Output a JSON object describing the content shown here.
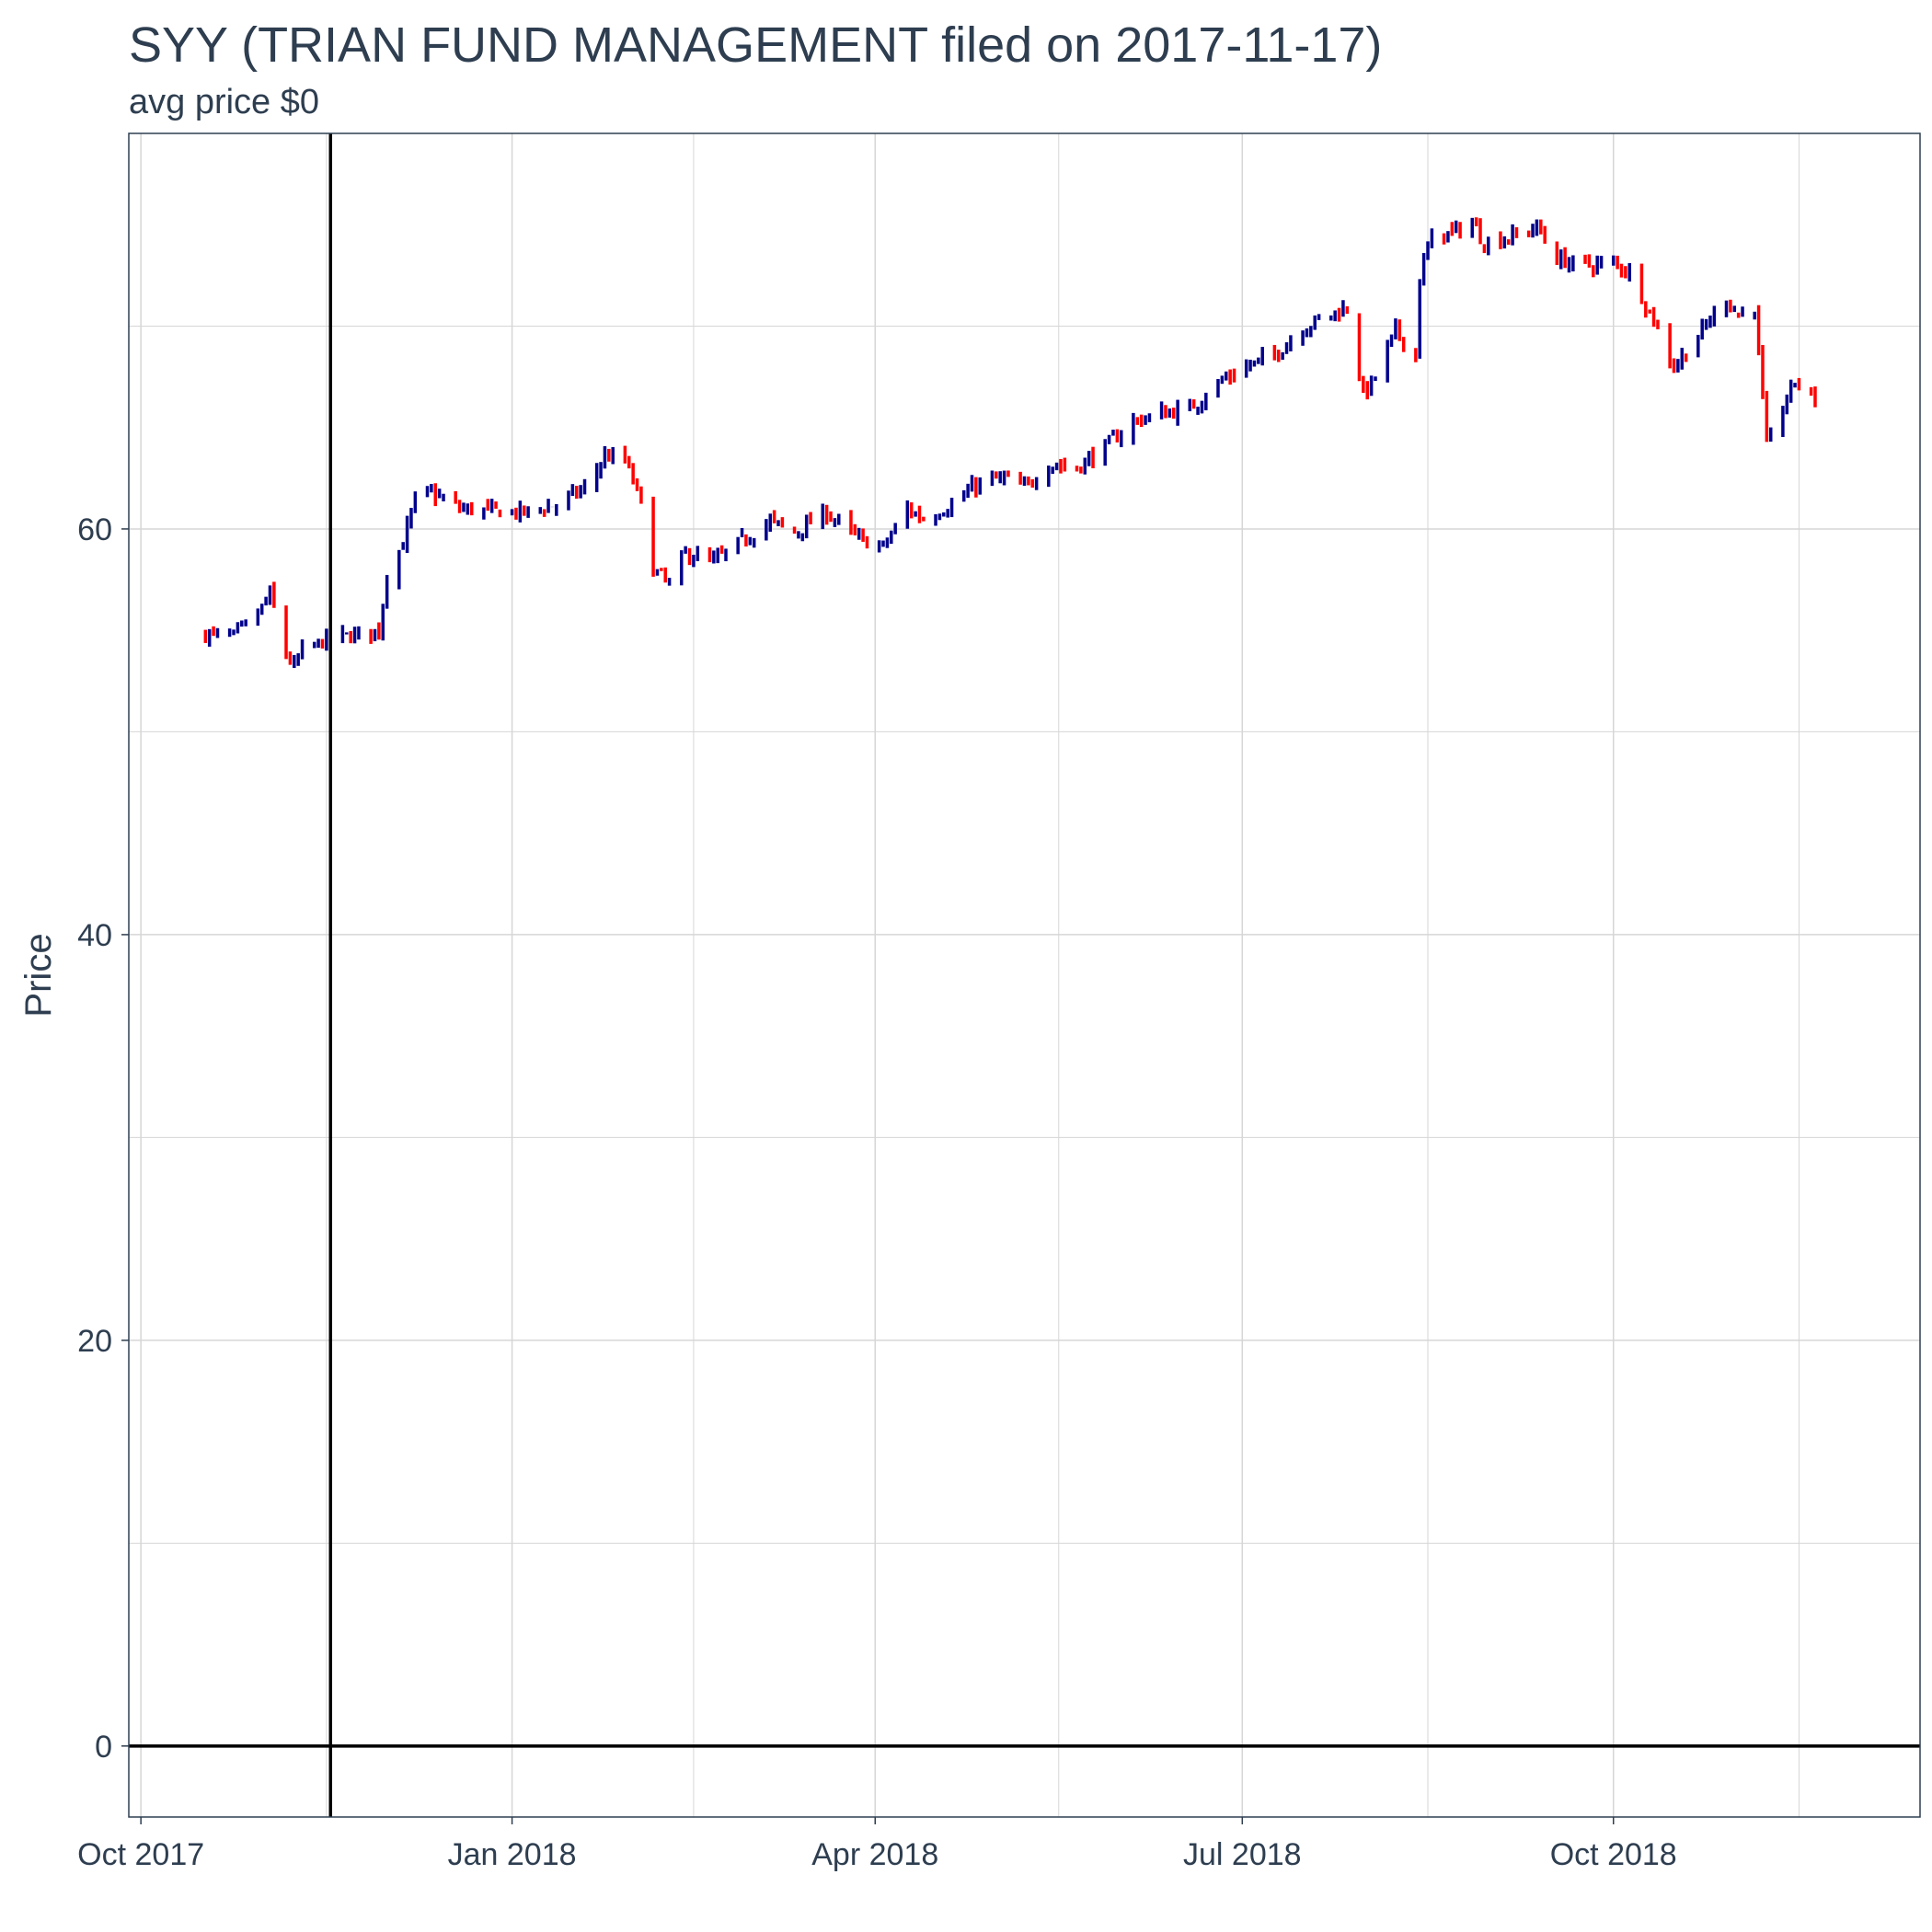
{
  "chart_data": {
    "type": "ohlc",
    "title": "SYY (TRIAN FUND MANAGEMENT filed on 2017-11-17)",
    "subtitle": "avg price $0",
    "xlabel": "",
    "ylabel": "Price",
    "ylim": [
      -3.5,
      79.5
    ],
    "xlim": [
      "2017-09-28",
      "2018-12-16"
    ],
    "x_ticks": [
      {
        "date": "2017-10-01",
        "label": "Oct 2017"
      },
      {
        "date": "2018-01-01",
        "label": "Jan 2018"
      },
      {
        "date": "2018-04-01",
        "label": "Apr 2018"
      },
      {
        "date": "2018-07-01",
        "label": "Jul 2018"
      },
      {
        "date": "2018-10-01",
        "label": "Oct 2018"
      }
    ],
    "y_ticks": [
      0,
      20,
      40,
      60
    ],
    "grid": true,
    "reference_lines": {
      "vertical_date": "2017-11-17",
      "horizontal_value": 0
    },
    "colors": {
      "up": "#00008b",
      "down": "#ff0000",
      "grid": "#d6d6d6",
      "text": "#2e3e50",
      "reference": "#000000"
    },
    "anchor_closes": [
      [
        "2017-10-17",
        54.8
      ],
      [
        "2017-10-24",
        54.7
      ],
      [
        "2017-10-30",
        55.8
      ],
      [
        "2017-11-02",
        56.8
      ],
      [
        "2017-11-06",
        53.8
      ],
      [
        "2017-11-08",
        53.2
      ],
      [
        "2017-11-10",
        54.0
      ],
      [
        "2017-11-17",
        54.6
      ],
      [
        "2017-11-24",
        54.8
      ],
      [
        "2017-11-29",
        55.0
      ],
      [
        "2017-12-01",
        57.8
      ],
      [
        "2017-12-05",
        59.3
      ],
      [
        "2017-12-08",
        61.5
      ],
      [
        "2017-12-12",
        61.8
      ],
      [
        "2017-12-19",
        61.0
      ],
      [
        "2017-12-27",
        60.9
      ],
      [
        "2018-01-04",
        60.8
      ],
      [
        "2018-01-12",
        61.2
      ],
      [
        "2018-01-19",
        62.0
      ],
      [
        "2018-01-24",
        63.6
      ],
      [
        "2018-01-29",
        63.4
      ],
      [
        "2018-02-02",
        61.3
      ],
      [
        "2018-02-05",
        58.0
      ],
      [
        "2018-02-09",
        57.3
      ],
      [
        "2018-02-13",
        58.8
      ],
      [
        "2018-02-20",
        58.4
      ],
      [
        "2018-02-27",
        59.4
      ],
      [
        "2018-03-06",
        60.4
      ],
      [
        "2018-03-12",
        59.8
      ],
      [
        "2018-03-20",
        60.8
      ],
      [
        "2018-03-28",
        59.5
      ],
      [
        "2018-04-03",
        59.1
      ],
      [
        "2018-04-09",
        61.0
      ],
      [
        "2018-04-13",
        60.5
      ],
      [
        "2018-04-20",
        61.2
      ],
      [
        "2018-04-27",
        62.3
      ],
      [
        "2018-05-03",
        62.5
      ],
      [
        "2018-05-08",
        62.0
      ],
      [
        "2018-05-14",
        63.2
      ],
      [
        "2018-05-21",
        63.0
      ],
      [
        "2018-05-29",
        64.2
      ],
      [
        "2018-06-04",
        65.3
      ],
      [
        "2018-06-11",
        65.7
      ],
      [
        "2018-06-18",
        65.9
      ],
      [
        "2018-06-25",
        67.2
      ],
      [
        "2018-07-02",
        68.0
      ],
      [
        "2018-07-09",
        68.6
      ],
      [
        "2018-07-16",
        69.9
      ],
      [
        "2018-07-23",
        70.6
      ],
      [
        "2018-07-27",
        70.9
      ],
      [
        "2018-07-31",
        66.6
      ],
      [
        "2018-08-03",
        67.5
      ],
      [
        "2018-08-08",
        69.8
      ],
      [
        "2018-08-13",
        68.4
      ],
      [
        "2018-08-14",
        72.5
      ],
      [
        "2018-08-17",
        74.4
      ],
      [
        "2018-08-22",
        74.6
      ],
      [
        "2018-08-27",
        75.1
      ],
      [
        "2018-08-30",
        74.1
      ],
      [
        "2018-09-06",
        74.4
      ],
      [
        "2018-09-12",
        74.9
      ],
      [
        "2018-09-17",
        73.3
      ],
      [
        "2018-09-24",
        73.0
      ],
      [
        "2018-10-01",
        73.1
      ],
      [
        "2018-10-05",
        72.7
      ],
      [
        "2018-10-10",
        70.7
      ],
      [
        "2018-10-16",
        68.0
      ],
      [
        "2018-10-22",
        69.5
      ],
      [
        "2018-10-29",
        71.4
      ],
      [
        "2018-11-01",
        70.5
      ],
      [
        "2018-11-05",
        71.0
      ],
      [
        "2018-11-08",
        64.0
      ],
      [
        "2018-11-12",
        66.0
      ],
      [
        "2018-11-15",
        67.3
      ],
      [
        "2018-11-20",
        66.4
      ]
    ]
  }
}
